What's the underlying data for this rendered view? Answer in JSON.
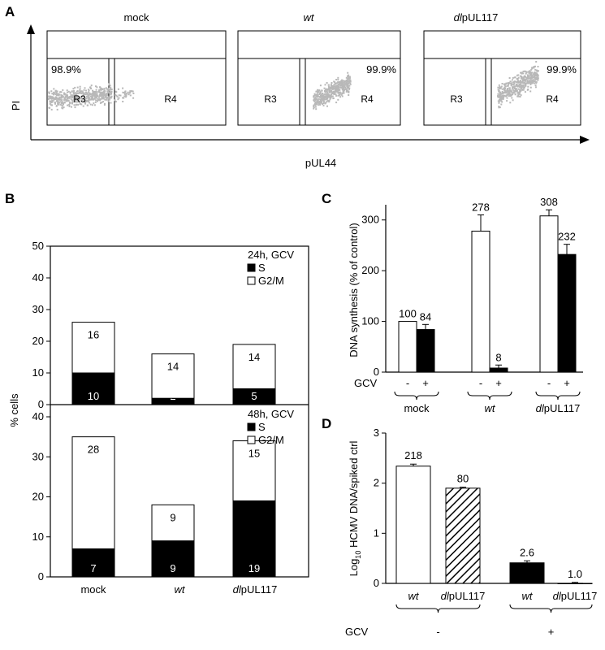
{
  "panels": {
    "A": "A",
    "B": "B",
    "C": "C",
    "D": "D"
  },
  "flow": {
    "ylabel": "PI",
    "xlabel": "pUL44",
    "plots": [
      {
        "title": "mock",
        "italic": false,
        "pct": "98.9%",
        "pct_side": "left",
        "gates": [
          "R3",
          "R4"
        ]
      },
      {
        "title_italic": "wt",
        "title_rest": "",
        "pct": "99.9%",
        "pct_side": "right",
        "gates": [
          "R3",
          "R4"
        ]
      },
      {
        "title_italic": "dl",
        "title_rest": "pUL117",
        "pct": "99.9%",
        "pct_side": "right",
        "gates": [
          "R3",
          "R4"
        ]
      }
    ]
  },
  "chart_data": [
    {
      "type": "bar",
      "stacked": true,
      "panel": "B",
      "categories": [
        "mock",
        "wt",
        "dlpUL117"
      ],
      "ylabel": "% cells",
      "ylim": [
        0,
        50
      ],
      "subplots": [
        {
          "label": "24h, GCV",
          "ylim": [
            0,
            50
          ],
          "yticks": [
            0,
            10,
            20,
            30,
            40,
            50
          ],
          "series": [
            {
              "name": "S",
              "color": "#000000",
              "values": [
                10,
                2,
                5
              ]
            },
            {
              "name": "G2/M",
              "color": "#ffffff",
              "values": [
                16,
                14,
                14
              ]
            }
          ]
        },
        {
          "label": "48h, GCV",
          "ylim": [
            0,
            40
          ],
          "yticks": [
            0,
            10,
            20,
            30,
            40
          ],
          "series": [
            {
              "name": "S",
              "color": "#000000",
              "values": [
                7,
                9,
                19
              ]
            },
            {
              "name": "G2/M",
              "color": "#ffffff",
              "values": [
                28,
                9,
                15
              ]
            }
          ]
        }
      ]
    },
    {
      "type": "bar",
      "panel": "C",
      "ylabel": "DNA synthesis (% of control)",
      "ylim": [
        0,
        330
      ],
      "yticks": [
        0,
        100,
        200,
        300
      ],
      "groups": [
        "mock",
        "wt",
        "dlpUL117"
      ],
      "gcv_label": "GCV",
      "bars": [
        {
          "group": 0,
          "gcv": "-",
          "value": 100,
          "err": 0,
          "label": "100",
          "fill": "#ffffff"
        },
        {
          "group": 0,
          "gcv": "+",
          "value": 84,
          "err": 10,
          "label": "84",
          "fill": "#000000"
        },
        {
          "group": 1,
          "gcv": "-",
          "value": 278,
          "err": 32,
          "label": "278",
          "fill": "#ffffff"
        },
        {
          "group": 1,
          "gcv": "+",
          "value": 8,
          "err": 6,
          "label": "8",
          "fill": "#000000"
        },
        {
          "group": 2,
          "gcv": "-",
          "value": 308,
          "err": 12,
          "label": "308",
          "fill": "#ffffff"
        },
        {
          "group": 2,
          "gcv": "+",
          "value": 232,
          "err": 20,
          "label": "232",
          "fill": "#000000"
        }
      ]
    },
    {
      "type": "bar",
      "panel": "D",
      "ylabel_prefix": "Log",
      "ylabel_sub": "10",
      "ylabel_rest": " HCMV DNA/spiked ctrl",
      "ylim": [
        0,
        3
      ],
      "yticks": [
        0,
        1,
        2,
        3
      ],
      "gcv_label": "GCV",
      "gcv_groups": [
        "-",
        "+"
      ],
      "bars": [
        {
          "cat_italic": "wt",
          "cat_rest": "",
          "value": 2.34,
          "err": 0.04,
          "label": "218",
          "fill": "white"
        },
        {
          "cat_italic": "dl",
          "cat_rest": "pUL117",
          "value": 1.9,
          "err": 0.02,
          "label": "80",
          "fill": "hatch"
        },
        {
          "cat_italic": "wt",
          "cat_rest": "",
          "value": 0.41,
          "err": 0.04,
          "label": "2.6",
          "fill": "black"
        },
        {
          "cat_italic": "dl",
          "cat_rest": "pUL117",
          "value": 0.0,
          "err": 0.02,
          "label": "1.0",
          "fill": "black"
        }
      ]
    }
  ]
}
